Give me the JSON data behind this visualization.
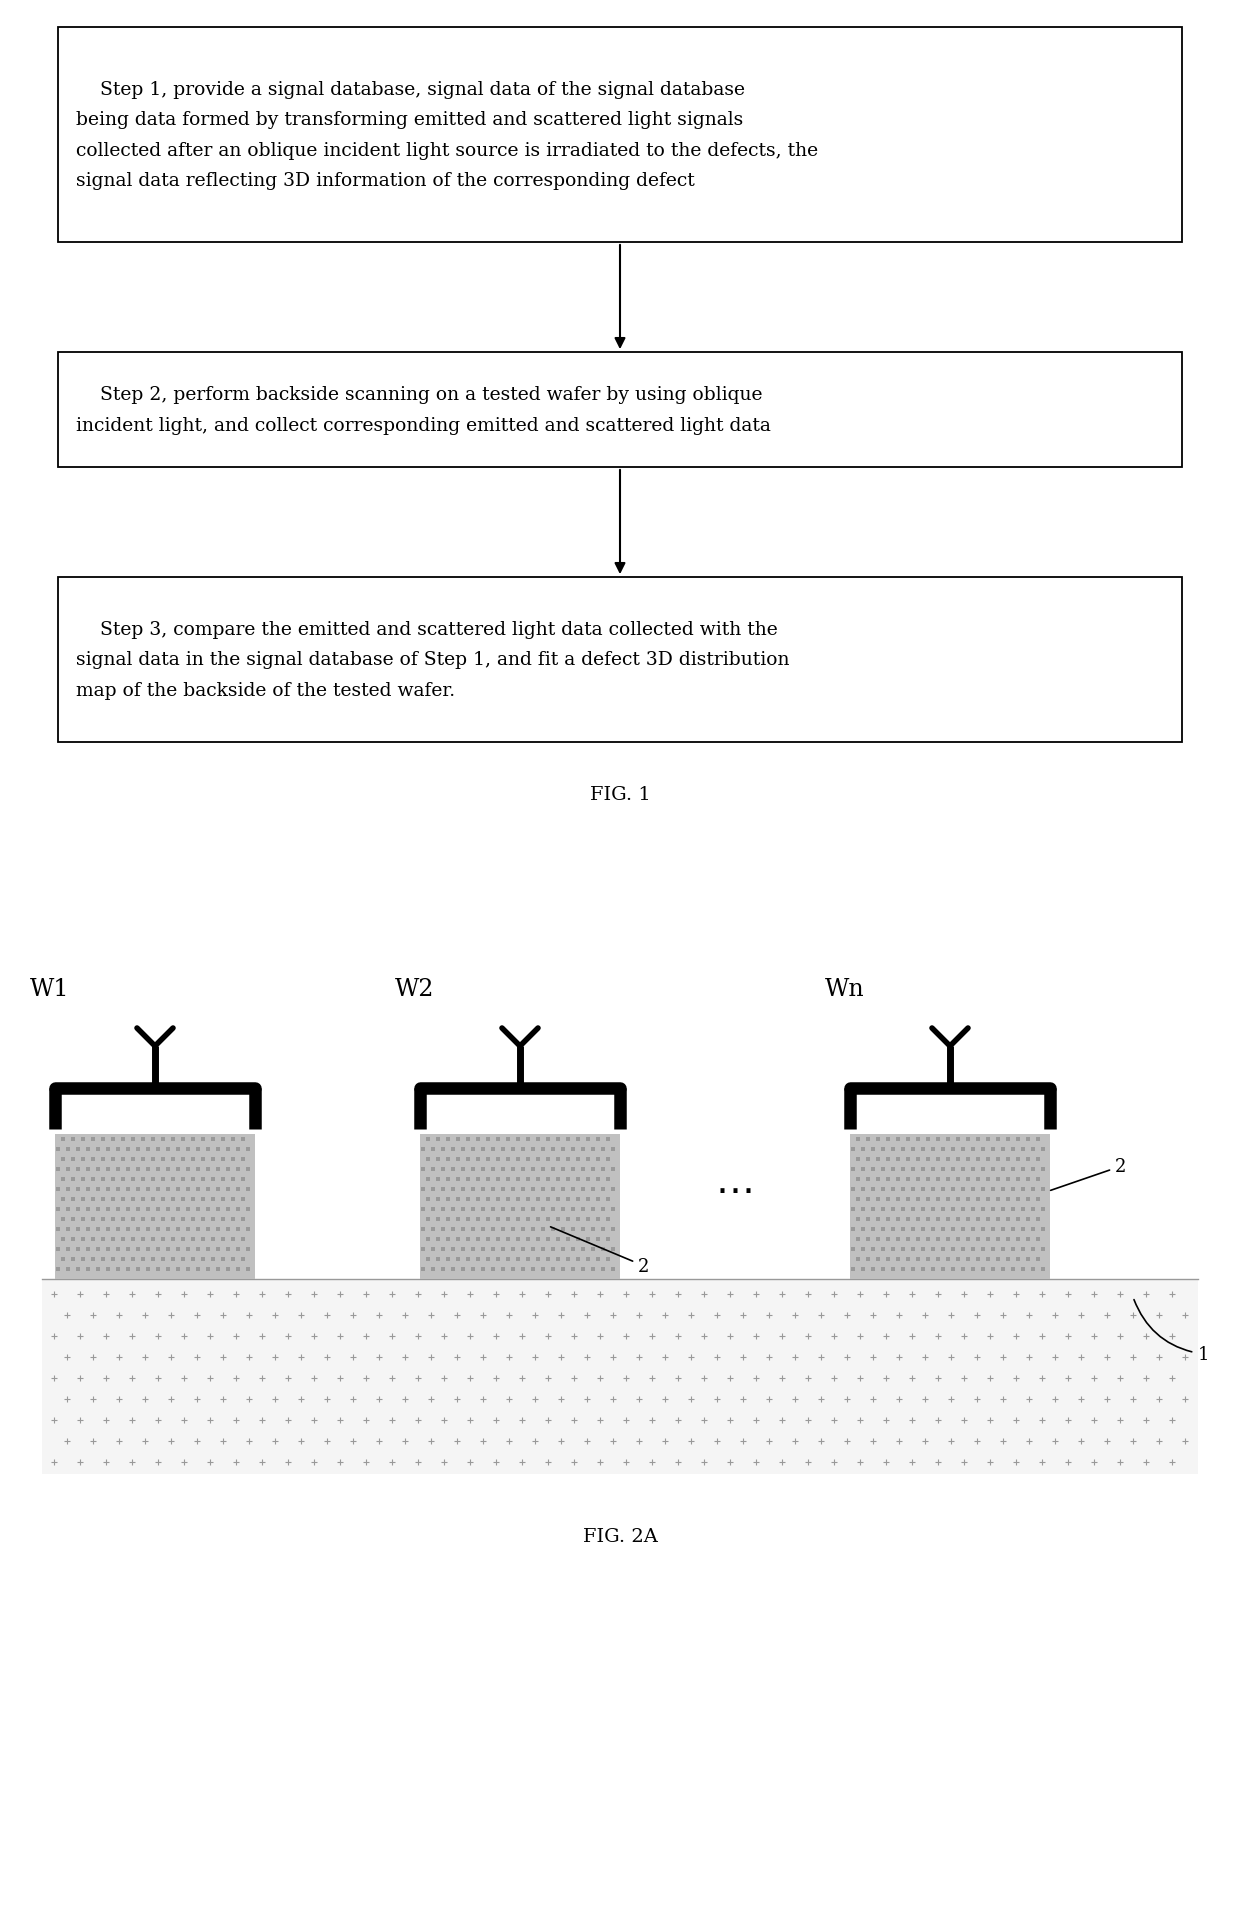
{
  "fig_width": 12.4,
  "fig_height": 19.08,
  "background_color": "#ffffff",
  "step1_text": "    Step 1, provide a signal database, signal data of the signal database\nbeing data formed by transforming emitted and scattered light signals\ncollected after an oblique incident light source is irradiated to the defects, the\nsignal data reflecting 3D information of the corresponding defect",
  "step2_text": "    Step 2, perform backside scanning on a tested wafer by using oblique\nincident light, and collect corresponding emitted and scattered light data",
  "step3_text": "    Step 3, compare the emitted and scattered light data collected with the\nsignal data in the signal database of Step 1, and fit a defect 3D distribution\nmap of the backside of the tested wafer.",
  "fig1_caption": "FIG. 1",
  "fig2a_caption": "FIG. 2A",
  "label_w1": "W1",
  "label_w2": "W2",
  "label_wn": "Wn",
  "box_edge_color": "#000000",
  "box_fill": "#ffffff",
  "text_color": "#000000",
  "arrow_color": "#000000",
  "wafer_gray": "#aaaaaa",
  "wafer_dark": "#888888",
  "stage_fill": "#f5f5f5",
  "stage_edge": "#999999"
}
